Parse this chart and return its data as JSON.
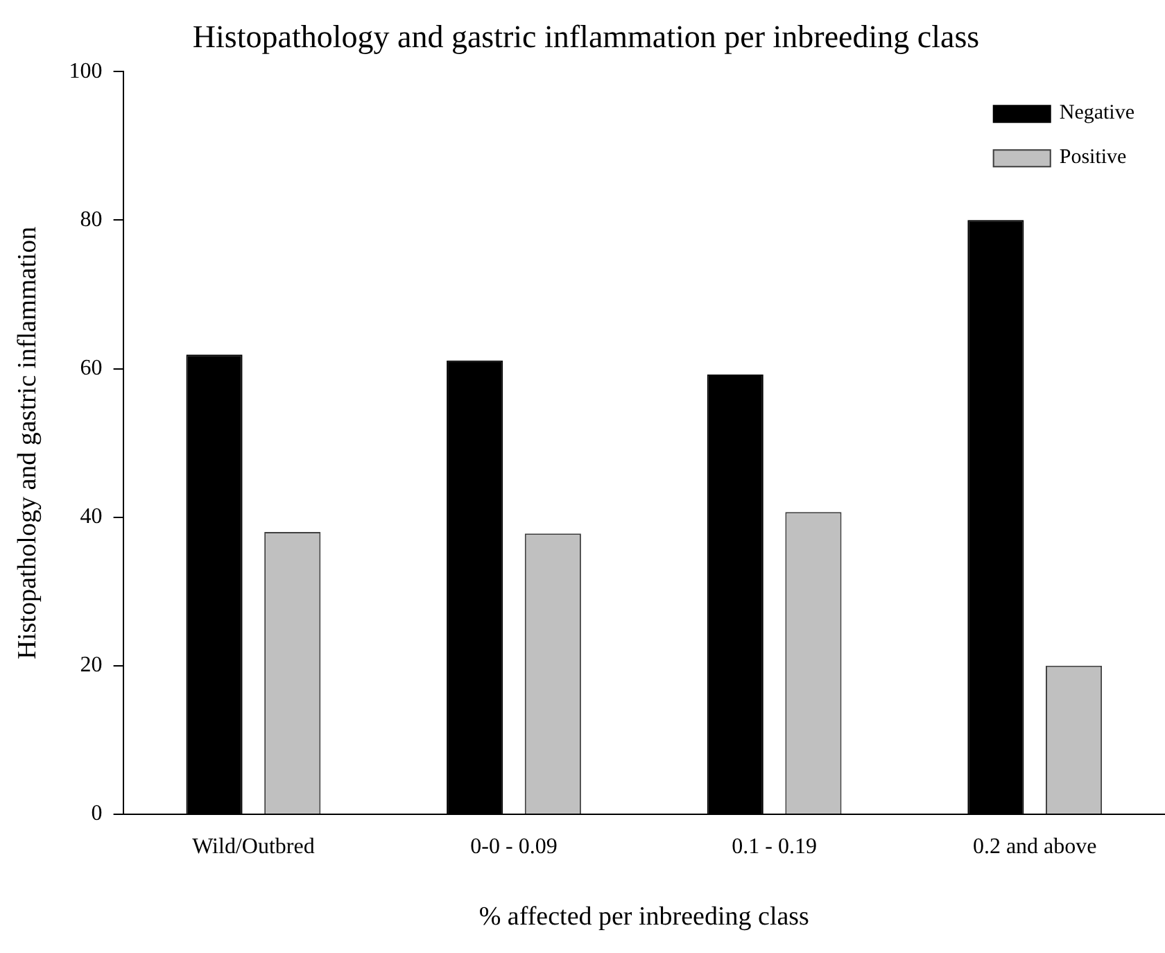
{
  "chart_data": {
    "type": "bar",
    "title": "Histopathology and gastric inflammation per inbreeding class",
    "xlabel": "% affected per inbreeding class",
    "ylabel": "Histopathology and gastric inflammation",
    "categories": [
      "Wild/Outbred",
      "0-0 - 0.09",
      "0.1 - 0.19",
      "0.2 and above"
    ],
    "series": [
      {
        "name": "Negative",
        "color": "#000000",
        "values": [
          61.9,
          61.1,
          59.2,
          80.0
        ]
      },
      {
        "name": "Positive",
        "color": "#c0c0c0",
        "values": [
          38.0,
          37.8,
          40.7,
          20.0
        ]
      }
    ],
    "ylim": [
      0,
      100
    ],
    "yticks": [
      0,
      20,
      40,
      60,
      80,
      100
    ],
    "grid": false,
    "legend": "top right"
  }
}
